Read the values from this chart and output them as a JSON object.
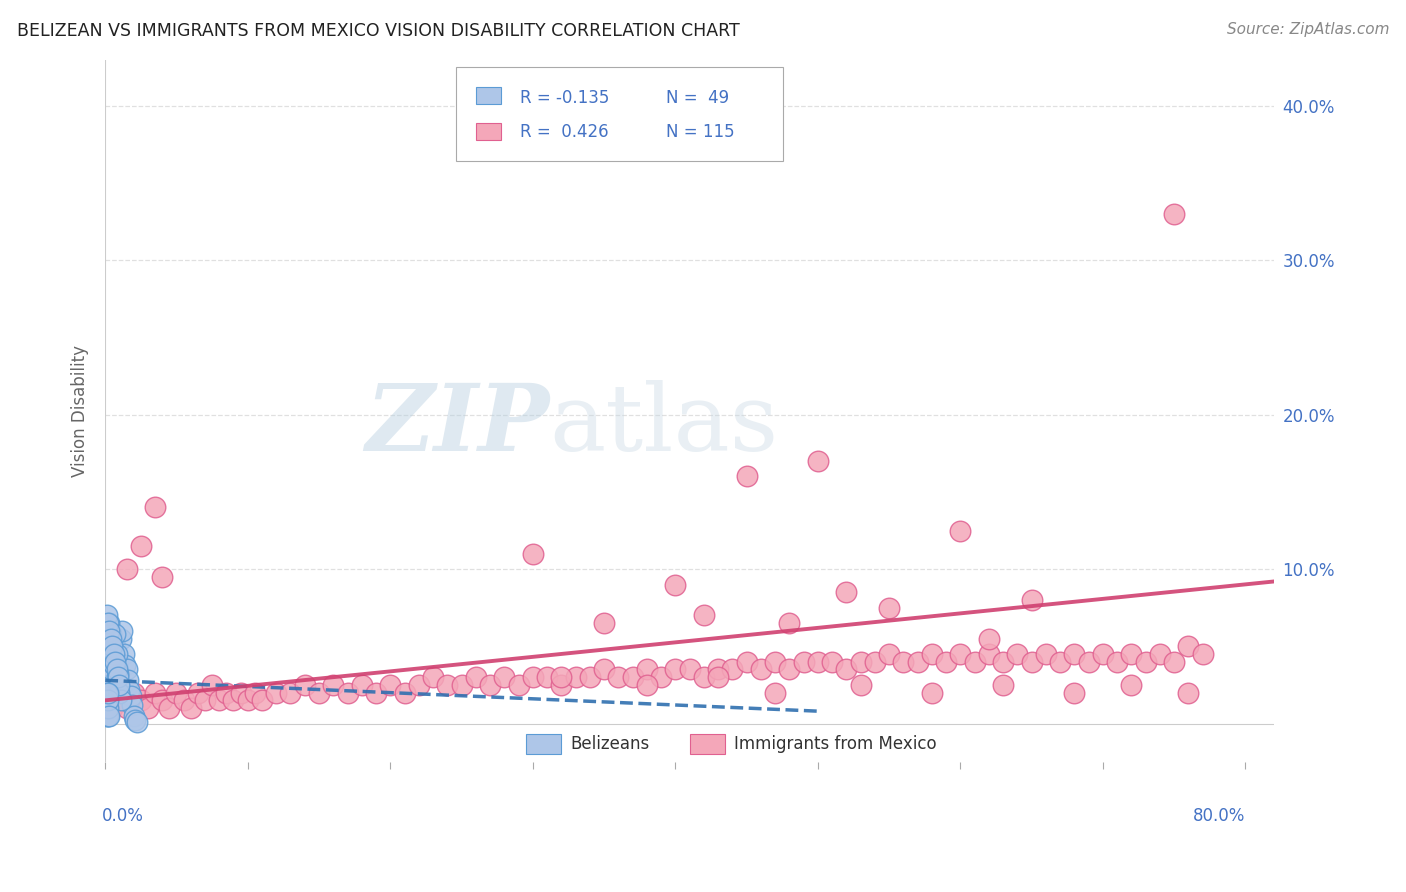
{
  "title": "BELIZEAN VS IMMIGRANTS FROM MEXICO VISION DISABILITY CORRELATION CHART",
  "source": "Source: ZipAtlas.com",
  "ylabel": "Vision Disability",
  "xmin": 0.0,
  "xmax": 0.82,
  "ymin": -0.025,
  "ymax": 0.43,
  "blue_scatter_color": "#aec6e8",
  "blue_edge_color": "#5b9bd5",
  "pink_scatter_color": "#f4a7b9",
  "pink_edge_color": "#e06090",
  "blue_line_color": "#3070b0",
  "pink_line_color": "#d04070",
  "axis_tick_color": "#4472c4",
  "ylabel_color": "#666666",
  "title_color": "#222222",
  "source_color": "#888888",
  "grid_color": "#e0e0e0",
  "watermark_color": "#c5d5e8",
  "legend_R1": "R = -0.135",
  "legend_N1": "N =  49",
  "legend_R2": "R =  0.426",
  "legend_N2": "N = 115",
  "belizeans_x": [
    0.002,
    0.003,
    0.004,
    0.005,
    0.006,
    0.007,
    0.008,
    0.009,
    0.01,
    0.011,
    0.012,
    0.013,
    0.014,
    0.015,
    0.016,
    0.017,
    0.018,
    0.019,
    0.02,
    0.021,
    0.022,
    0.003,
    0.004,
    0.005,
    0.006,
    0.007,
    0.008,
    0.009,
    0.01,
    0.011,
    0.001,
    0.002,
    0.003,
    0.004,
    0.005,
    0.006,
    0.007,
    0.008,
    0.009,
    0.01,
    0.001,
    0.001,
    0.001,
    0.001,
    0.002,
    0.002,
    0.002,
    0.002,
    0.003
  ],
  "belizeans_y": [
    0.03,
    0.025,
    0.035,
    0.04,
    0.02,
    0.05,
    0.03,
    0.04,
    0.025,
    0.055,
    0.06,
    0.045,
    0.038,
    0.035,
    0.028,
    0.022,
    0.018,
    0.012,
    0.005,
    0.002,
    0.001,
    0.065,
    0.058,
    0.048,
    0.038,
    0.058,
    0.045,
    0.032,
    0.02,
    0.015,
    0.07,
    0.065,
    0.06,
    0.055,
    0.05,
    0.045,
    0.04,
    0.035,
    0.03,
    0.025,
    0.005,
    0.01,
    0.015,
    0.02,
    0.005,
    0.01,
    0.015,
    0.02,
    0.005
  ],
  "mexico_x": [
    0.005,
    0.01,
    0.015,
    0.02,
    0.025,
    0.03,
    0.035,
    0.04,
    0.045,
    0.05,
    0.055,
    0.06,
    0.065,
    0.07,
    0.075,
    0.08,
    0.085,
    0.09,
    0.095,
    0.1,
    0.105,
    0.11,
    0.12,
    0.13,
    0.14,
    0.15,
    0.16,
    0.17,
    0.18,
    0.19,
    0.2,
    0.21,
    0.22,
    0.23,
    0.24,
    0.25,
    0.26,
    0.27,
    0.28,
    0.29,
    0.3,
    0.31,
    0.32,
    0.33,
    0.34,
    0.35,
    0.36,
    0.37,
    0.38,
    0.39,
    0.4,
    0.41,
    0.42,
    0.43,
    0.44,
    0.45,
    0.46,
    0.47,
    0.48,
    0.49,
    0.5,
    0.51,
    0.52,
    0.53,
    0.54,
    0.55,
    0.56,
    0.57,
    0.58,
    0.59,
    0.6,
    0.61,
    0.62,
    0.63,
    0.64,
    0.65,
    0.66,
    0.67,
    0.68,
    0.69,
    0.7,
    0.71,
    0.72,
    0.73,
    0.74,
    0.75,
    0.76,
    0.77,
    0.3,
    0.45,
    0.5,
    0.52,
    0.6,
    0.65,
    0.4,
    0.35,
    0.42,
    0.48,
    0.55,
    0.62,
    0.32,
    0.38,
    0.43,
    0.47,
    0.53,
    0.58,
    0.63,
    0.68,
    0.72,
    0.76,
    0.015,
    0.025,
    0.035,
    0.04,
    0.75
  ],
  "mexico_y": [
    0.01,
    0.015,
    0.01,
    0.02,
    0.015,
    0.01,
    0.02,
    0.015,
    0.01,
    0.02,
    0.015,
    0.01,
    0.02,
    0.015,
    0.025,
    0.015,
    0.02,
    0.015,
    0.02,
    0.015,
    0.02,
    0.015,
    0.02,
    0.02,
    0.025,
    0.02,
    0.025,
    0.02,
    0.025,
    0.02,
    0.025,
    0.02,
    0.025,
    0.03,
    0.025,
    0.025,
    0.03,
    0.025,
    0.03,
    0.025,
    0.03,
    0.03,
    0.025,
    0.03,
    0.03,
    0.035,
    0.03,
    0.03,
    0.035,
    0.03,
    0.035,
    0.035,
    0.03,
    0.035,
    0.035,
    0.04,
    0.035,
    0.04,
    0.035,
    0.04,
    0.04,
    0.04,
    0.035,
    0.04,
    0.04,
    0.045,
    0.04,
    0.04,
    0.045,
    0.04,
    0.045,
    0.04,
    0.045,
    0.04,
    0.045,
    0.04,
    0.045,
    0.04,
    0.045,
    0.04,
    0.045,
    0.04,
    0.045,
    0.04,
    0.045,
    0.04,
    0.05,
    0.045,
    0.11,
    0.16,
    0.17,
    0.085,
    0.125,
    0.08,
    0.09,
    0.065,
    0.07,
    0.065,
    0.075,
    0.055,
    0.03,
    0.025,
    0.03,
    0.02,
    0.025,
    0.02,
    0.025,
    0.02,
    0.025,
    0.02,
    0.1,
    0.115,
    0.14,
    0.095,
    0.33
  ],
  "blue_trendline_x": [
    0.0,
    0.5
  ],
  "blue_trendline_y": [
    0.028,
    0.008
  ],
  "pink_trendline_x": [
    0.0,
    0.82
  ],
  "pink_trendline_y": [
    0.015,
    0.092
  ]
}
